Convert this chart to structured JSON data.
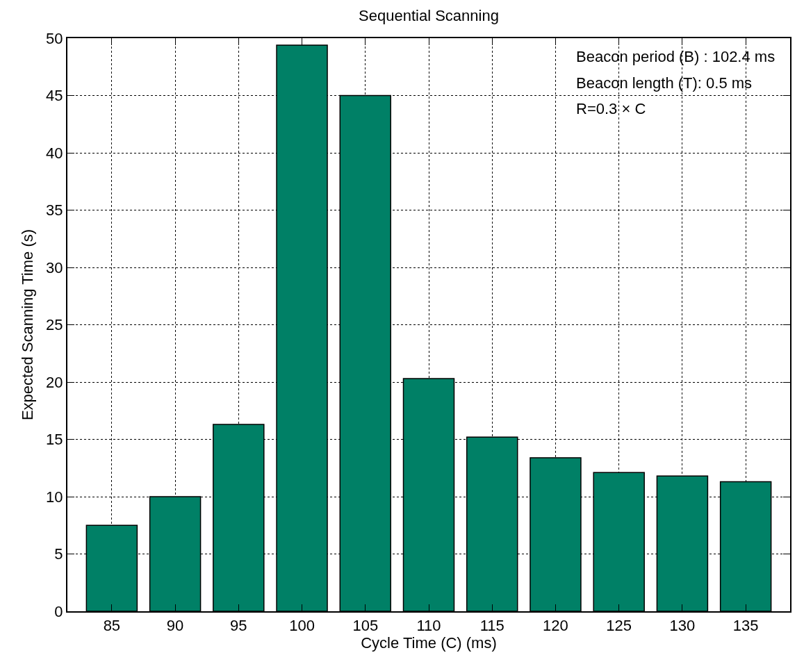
{
  "chart_data": {
    "type": "bar",
    "title": "Sequential Scanning",
    "xlabel": "Cycle Time (C) (ms)",
    "ylabel": "Expected Scanning Time (s)",
    "categories": [
      "85",
      "90",
      "95",
      "100",
      "105",
      "110",
      "115",
      "120",
      "125",
      "130",
      "135"
    ],
    "values": [
      7.5,
      10.0,
      16.3,
      49.4,
      45.0,
      20.3,
      15.2,
      13.4,
      12.1,
      11.8,
      11.3
    ],
    "color": "#008066",
    "ylim": [
      0,
      50
    ],
    "yticks": [
      0,
      5,
      10,
      15,
      20,
      25,
      30,
      35,
      40,
      45,
      50
    ],
    "grid": true,
    "annotations": [
      "Beacon period (B) : 102.4 ms",
      "Beacon length (T): 0.5 ms",
      "R=0.3 × C"
    ]
  }
}
